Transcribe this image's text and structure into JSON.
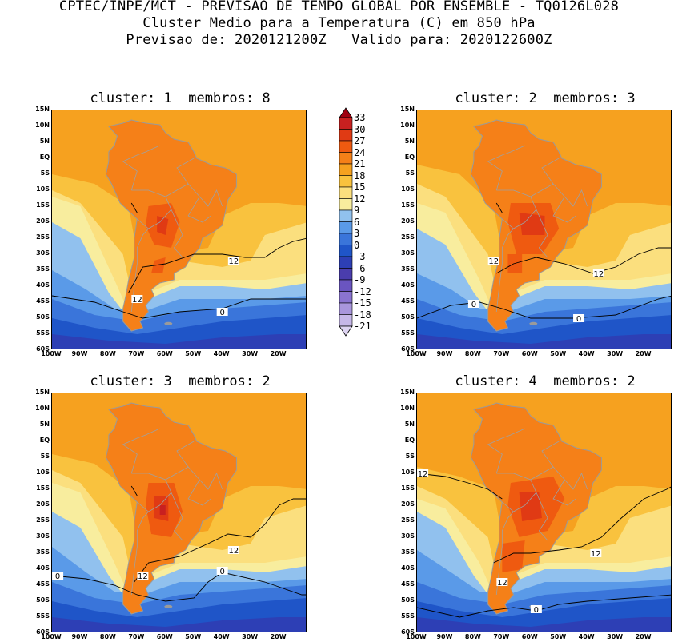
{
  "header": {
    "line1": "CPTEC/INPE/MCT - PREVISAO DE TEMPO GLOBAL POR ENSEMBLE - TQ0126L028",
    "line2": "Cluster Medio para a Temperatura (C) em 850 hPa",
    "line3": "Previsao de: 2020121200Z   Valido para: 2020122600Z"
  },
  "panels": [
    {
      "title": "cluster: 1  membros: 8",
      "contour_labels": [
        "12",
        "12",
        "0"
      ]
    },
    {
      "title": "cluster: 2  membros: 3",
      "contour_labels": [
        "12",
        "12",
        "0",
        "0"
      ]
    },
    {
      "title": "cluster: 3  membros: 2",
      "contour_labels": [
        "12",
        "12",
        "0",
        "0"
      ]
    },
    {
      "title": "cluster: 4  membros: 2",
      "contour_labels": [
        "12",
        "12",
        "12",
        "0"
      ]
    }
  ],
  "lat_labels": [
    "15N",
    "10N",
    "5N",
    "EQ",
    "5S",
    "10S",
    "15S",
    "20S",
    "25S",
    "30S",
    "35S",
    "40S",
    "45S",
    "50S",
    "55S",
    "60S"
  ],
  "lon_labels": [
    "100W",
    "90W",
    "80W",
    "70W",
    "60W",
    "50W",
    "40W",
    "30W",
    "20W"
  ],
  "colorbar": {
    "labels": [
      "33",
      "30",
      "27",
      "24",
      "21",
      "18",
      "15",
      "12",
      "9",
      "6",
      "3",
      "0",
      "-3",
      "-6",
      "-9",
      "-12",
      "-15",
      "-18",
      "-21"
    ],
    "colors": [
      "#a00010",
      "#c82020",
      "#e03a14",
      "#ef5a10",
      "#f58018",
      "#f6a11f",
      "#f9c23e",
      "#fbdf7e",
      "#f8ed9e",
      "#91c1ee",
      "#5a9ae8",
      "#3a75da",
      "#1f55c8",
      "#2d3fb5",
      "#4a3dad",
      "#6a55c0",
      "#8a74d0",
      "#a996dc",
      "#c6b7e8",
      "#ded4f2"
    ]
  }
}
